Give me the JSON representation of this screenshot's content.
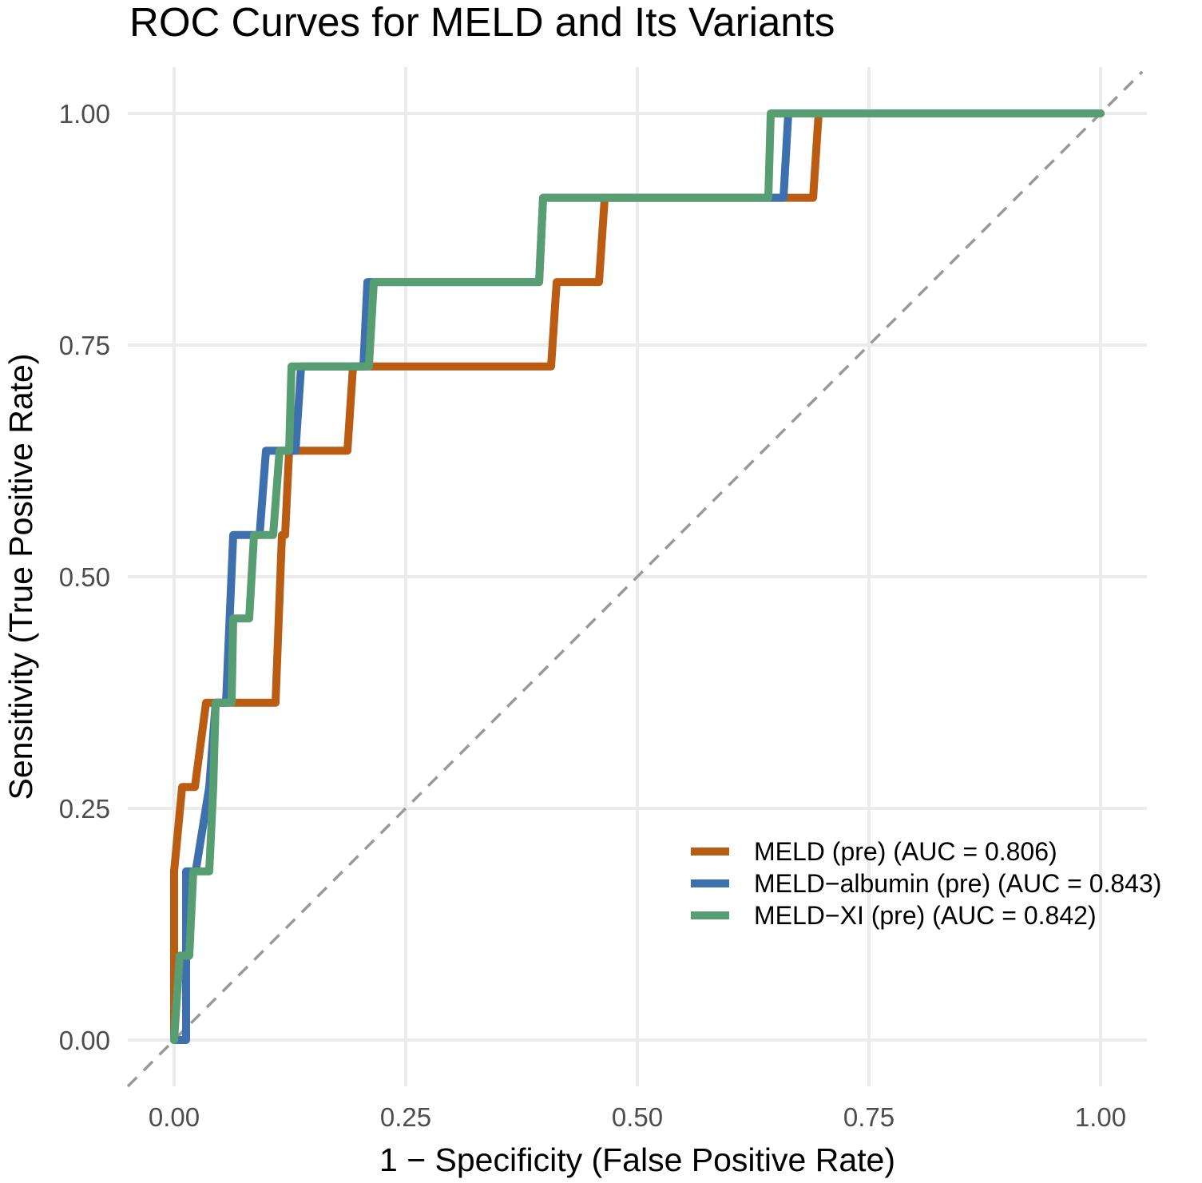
{
  "chart_data": {
    "type": "line",
    "title": "ROC Curves for MELD and Its Variants",
    "xlabel": "1 − Specificity (False Positive Rate)",
    "ylabel": "Sensitivity (True Positive Rate)",
    "xlim": [
      -0.05,
      1.05
    ],
    "ylim": [
      -0.05,
      1.05
    ],
    "x_ticks": [
      0,
      0.25,
      0.5,
      0.75,
      1
    ],
    "x_tick_labels": [
      "0.00",
      "0.25",
      "0.50",
      "0.75",
      "1.00"
    ],
    "y_ticks": [
      0,
      0.25,
      0.5,
      0.75,
      1
    ],
    "y_tick_labels": [
      "0.00",
      "0.25",
      "0.50",
      "0.75",
      "1.00"
    ],
    "grid": true,
    "legend_position": "bottom-right",
    "reference_line": {
      "type": "diagonal",
      "style": "dashed",
      "color": "#999999"
    },
    "series": [
      {
        "name": "MELD (pre) (AUC = 0.806)",
        "color": "#BA5C12",
        "x": [
          0,
          0,
          0.0086,
          0.0224,
          0.0345,
          0.1095,
          0.1164,
          0.1198,
          0.1241,
          0.1871,
          0.1931,
          0.4069,
          0.4129,
          0.4586,
          0.4647,
          0.6897,
          0.6957,
          1
        ],
        "y": [
          0,
          0.182,
          0.273,
          0.273,
          0.364,
          0.364,
          0.545,
          0.545,
          0.636,
          0.636,
          0.727,
          0.727,
          0.818,
          0.818,
          0.909,
          0.909,
          1,
          1
        ]
      },
      {
        "name": "MELD−albumin (pre) (AUC = 0.843)",
        "color": "#3F70AE",
        "x": [
          0,
          0.0129,
          0.0129,
          0.0233,
          0.0379,
          0.0448,
          0.056,
          0.0638,
          0.0922,
          0.0991,
          0.131,
          0.1371,
          0.2043,
          0.2086,
          0.394,
          0.3983,
          0.6578,
          0.6629,
          1
        ],
        "y": [
          0,
          0,
          0.182,
          0.182,
          0.273,
          0.364,
          0.364,
          0.545,
          0.545,
          0.636,
          0.636,
          0.727,
          0.727,
          0.818,
          0.818,
          0.909,
          0.909,
          1,
          1
        ]
      },
      {
        "name": "MELD−XI (pre) (AUC = 0.842)",
        "color": "#579E72",
        "x": [
          0,
          0.006,
          0.0164,
          0.0207,
          0.0379,
          0.0422,
          0.0448,
          0.0621,
          0.0638,
          0.081,
          0.0862,
          0.1069,
          0.1138,
          0.1241,
          0.1267,
          0.2103,
          0.2155,
          0.394,
          0.3983,
          0.6414,
          0.644,
          1
        ],
        "y": [
          0,
          0.091,
          0.091,
          0.182,
          0.182,
          0.273,
          0.364,
          0.364,
          0.455,
          0.455,
          0.545,
          0.545,
          0.636,
          0.636,
          0.727,
          0.727,
          0.818,
          0.818,
          0.909,
          0.909,
          1,
          1
        ]
      }
    ]
  }
}
